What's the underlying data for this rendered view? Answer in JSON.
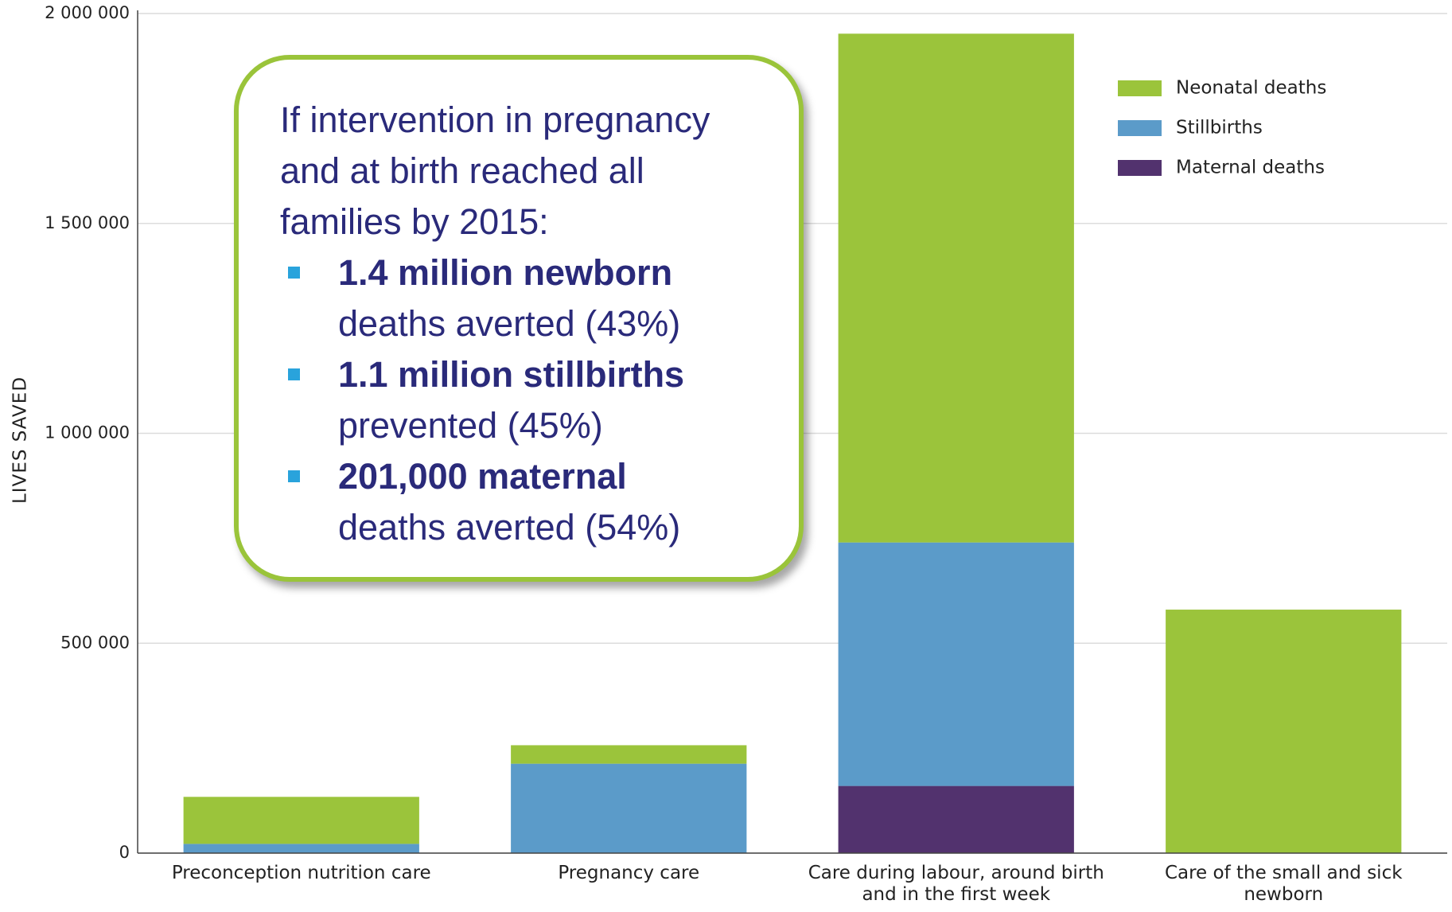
{
  "chart_data": {
    "type": "stacked_bar",
    "y_label": "LIVES SAVED",
    "categories": [
      "Preconception nutrition care",
      "Pregnancy care",
      "Care during labour, around birth and in the first week",
      "Care of the small and sick newborn"
    ],
    "series": [
      {
        "name": "Maternal deaths",
        "color": "#52326e",
        "values": [
          0,
          0,
          160000,
          0
        ]
      },
      {
        "name": "Stillbirths",
        "color": "#5b9bc9",
        "values": [
          22000,
          213000,
          580000,
          0
        ]
      },
      {
        "name": "Neonatal deaths",
        "color": "#9bc43b",
        "values": [
          112000,
          44000,
          1212000,
          580000
        ]
      }
    ],
    "ylim": [
      0,
      2000000
    ],
    "yticks": [
      0,
      {
        "value": 500000,
        "label": "500 000"
      },
      {
        "value": 1000000,
        "label": "1 000 000"
      },
      {
        "value": 1500000,
        "label": "1 500 000"
      },
      {
        "value": 2000000,
        "label": "2 000 000"
      }
    ],
    "grid": true,
    "legend": "top-right",
    "annotation": {
      "intro": "If intervention in pregnancy and at birth reached all families by 2015:",
      "items": [
        {
          "bold": "1.4 million  newborn",
          "text": "deaths averted (43%)"
        },
        {
          "bold": "1.1 million  stillbirths",
          "text": "prevented (45%)"
        },
        {
          "bold": "201,000 maternal",
          "text": "deaths averted (54%)"
        }
      ]
    }
  }
}
